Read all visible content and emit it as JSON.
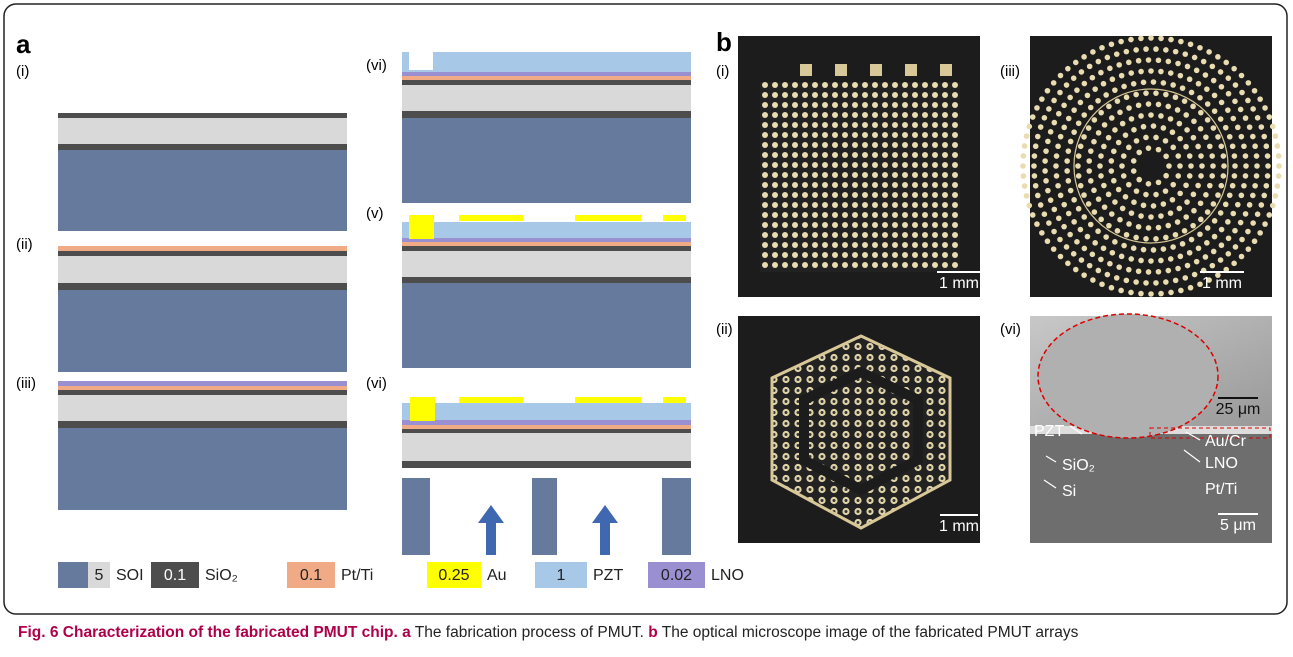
{
  "panel_a": {
    "label": "a",
    "steps": [
      "(i)",
      "(ii)",
      "(iii)",
      "(vi)",
      "(v)",
      "(vi)"
    ]
  },
  "legend": [
    {
      "value": "5",
      "name": "SOI"
    },
    {
      "value": "0.1",
      "name": "SiO₂"
    },
    {
      "value": "0.1",
      "name": "Pt/Ti"
    },
    {
      "value": "0.25",
      "name": "Au"
    },
    {
      "value": "1",
      "name": "PZT"
    },
    {
      "value": "0.02",
      "name": "LNO"
    }
  ],
  "panel_b": {
    "label": "b",
    "images": [
      {
        "label": "(i)",
        "scale_bar": "1 mm"
      },
      {
        "label": "(iii)",
        "scale_bar": "1 mm"
      },
      {
        "label": "(ii)",
        "scale_bar": "1 mm"
      },
      {
        "label": "(vi)",
        "scale_bars": [
          "25 μm",
          "5 μm"
        ],
        "annotations": [
          "PZT",
          "SiO₂",
          "Si",
          "Au/Cr",
          "LNO",
          "Pt/Ti"
        ]
      }
    ]
  },
  "caption": {
    "title": "Fig. 6 Characterization of the fabricated PMUT chip.",
    "a_label": "a",
    "a_text": " The fabrication process of PMUT. ",
    "b_label": "b",
    "b_text": " The optical microscope image of the fabricated PMUT arrays"
  }
}
